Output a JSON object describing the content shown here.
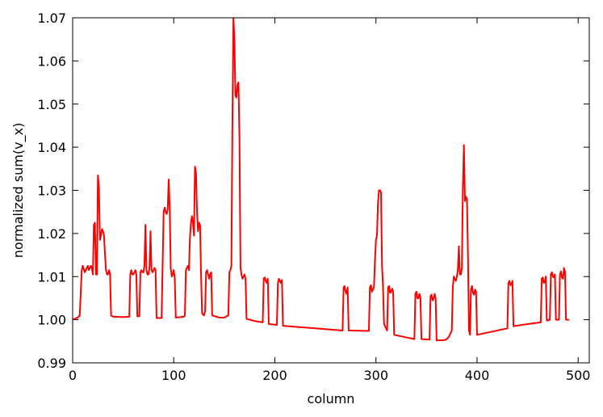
{
  "chart_data": {
    "type": "line",
    "title": "",
    "xlabel": "column",
    "ylabel": "normalized sum(v_x)",
    "xlim": [
      0,
      511
    ],
    "ylim": [
      0.99,
      1.07
    ],
    "grid": false,
    "line_color": "#ff0000",
    "x_ticks": [
      0,
      100,
      200,
      300,
      400,
      500
    ],
    "y_ticks": [
      0.99,
      1.0,
      1.01,
      1.02,
      1.03,
      1.04,
      1.05,
      1.06,
      1.07
    ],
    "x_tick_labels": [
      "0",
      "100",
      "200",
      "300",
      "400",
      "500"
    ],
    "y_tick_labels": [
      "0.99",
      "1.00",
      "1.01",
      "1.02",
      "1.03",
      "1.04",
      "1.05",
      "1.06",
      "1.07"
    ],
    "series": [
      {
        "points": [
          [
            0,
            1.0
          ],
          [
            5,
            1.0005
          ],
          [
            7,
            1.001
          ],
          [
            9,
            1.0115
          ],
          [
            10,
            1.0125
          ],
          [
            12,
            1.011
          ],
          [
            13,
            1.0115
          ],
          [
            15,
            1.0125
          ],
          [
            16,
            1.0115
          ],
          [
            17,
            1.012
          ],
          [
            18,
            1.0125
          ],
          [
            19,
            1.012
          ],
          [
            20,
            1.0105
          ],
          [
            21,
            1.022
          ],
          [
            22,
            1.0225
          ],
          [
            23,
            1.0105
          ],
          [
            24,
            1.0105
          ],
          [
            25,
            1.0335
          ],
          [
            26,
            1.0305
          ],
          [
            27,
            1.0185
          ],
          [
            28,
            1.0195
          ],
          [
            29,
            1.021
          ],
          [
            30,
            1.0205
          ],
          [
            31,
            1.0195
          ],
          [
            32,
            1.015
          ],
          [
            33,
            1.0115
          ],
          [
            34,
            1.0105
          ],
          [
            35,
            1.0105
          ],
          [
            36,
            1.0115
          ],
          [
            37,
            1.0105
          ],
          [
            38,
            1.001
          ],
          [
            40,
            1.0007
          ],
          [
            50,
            1.0006
          ],
          [
            56,
            1.0007
          ],
          [
            57,
            1.0105
          ],
          [
            58,
            1.0115
          ],
          [
            59,
            1.0105
          ],
          [
            60,
            1.0105
          ],
          [
            61,
            1.011
          ],
          [
            62,
            1.0115
          ],
          [
            63,
            1.0105
          ],
          [
            64,
            1.0008
          ],
          [
            66,
            1.0008
          ],
          [
            67,
            1.011
          ],
          [
            68,
            1.0115
          ],
          [
            69,
            1.011
          ],
          [
            70,
            1.011
          ],
          [
            71,
            1.0125
          ],
          [
            72,
            1.022
          ],
          [
            73,
            1.0115
          ],
          [
            74,
            1.0105
          ],
          [
            75,
            1.0105
          ],
          [
            76,
            1.012
          ],
          [
            77,
            1.0205
          ],
          [
            78,
            1.0115
          ],
          [
            79,
            1.011
          ],
          [
            80,
            1.0115
          ],
          [
            81,
            1.012
          ],
          [
            82,
            1.0115
          ],
          [
            83,
            1.0004
          ],
          [
            88,
            1.0004
          ],
          [
            89,
            1.013
          ],
          [
            90,
            1.025
          ],
          [
            91,
            1.026
          ],
          [
            92,
            1.025
          ],
          [
            93,
            1.0245
          ],
          [
            94,
            1.0255
          ],
          [
            95,
            1.0325
          ],
          [
            96,
            1.026
          ],
          [
            97,
            1.012
          ],
          [
            98,
            1.01
          ],
          [
            99,
            1.0105
          ],
          [
            100,
            1.0115
          ],
          [
            101,
            1.0095
          ],
          [
            102,
            1.0005
          ],
          [
            110,
            1.0007
          ],
          [
            111,
            1.001
          ],
          [
            112,
            1.0115
          ],
          [
            113,
            1.012
          ],
          [
            114,
            1.0125
          ],
          [
            115,
            1.0115
          ],
          [
            116,
            1.019
          ],
          [
            117,
            1.0225
          ],
          [
            118,
            1.024
          ],
          [
            119,
            1.0225
          ],
          [
            120,
            1.0195
          ],
          [
            121,
            1.0355
          ],
          [
            122,
            1.034
          ],
          [
            123,
            1.025
          ],
          [
            124,
            1.0205
          ],
          [
            125,
            1.0225
          ],
          [
            126,
            1.022
          ],
          [
            127,
            1.0105
          ],
          [
            128,
            1.0015
          ],
          [
            129,
            1.0012
          ],
          [
            130,
            1.001
          ],
          [
            131,
            1.002
          ],
          [
            132,
            1.011
          ],
          [
            133,
            1.0115
          ],
          [
            134,
            1.0105
          ],
          [
            135,
            1.0095
          ],
          [
            136,
            1.0105
          ],
          [
            137,
            1.011
          ],
          [
            138,
            1.001
          ],
          [
            145,
            1.0005
          ],
          [
            150,
            1.0005
          ],
          [
            154,
            1.001
          ],
          [
            155,
            1.011
          ],
          [
            156,
            1.0115
          ],
          [
            157,
            1.0125
          ],
          [
            158,
            1.045
          ],
          [
            159,
            1.07
          ],
          [
            160,
            1.065
          ],
          [
            161,
            1.052
          ],
          [
            162,
            1.0515
          ],
          [
            163,
            1.0545
          ],
          [
            164,
            1.055
          ],
          [
            165,
            1.042
          ],
          [
            166,
            1.012
          ],
          [
            167,
            1.0105
          ],
          [
            168,
            1.0095
          ],
          [
            169,
            1.01
          ],
          [
            170,
            1.0105
          ],
          [
            171,
            1.0095
          ],
          [
            172,
            1.0002
          ],
          [
            180,
            0.9997
          ],
          [
            188,
            0.9994
          ],
          [
            189,
            1.0095
          ],
          [
            190,
            1.0098
          ],
          [
            191,
            1.009
          ],
          [
            192,
            1.0085
          ],
          [
            193,
            1.0095
          ],
          [
            194,
            0.999
          ],
          [
            202,
            0.9988
          ],
          [
            203,
            1.0085
          ],
          [
            204,
            1.0095
          ],
          [
            205,
            1.009
          ],
          [
            206,
            1.0085
          ],
          [
            207,
            1.0092
          ],
          [
            208,
            0.9986
          ],
          [
            267,
            0.9975
          ],
          [
            268,
            1.0075
          ],
          [
            269,
            1.0078
          ],
          [
            270,
            1.0065
          ],
          [
            271,
            1.006
          ],
          [
            272,
            1.0075
          ],
          [
            273,
            0.9975
          ],
          [
            293,
            0.9974
          ],
          [
            294,
            1.0075
          ],
          [
            295,
            1.008
          ],
          [
            296,
            1.0065
          ],
          [
            297,
            1.007
          ],
          [
            298,
            1.0075
          ],
          [
            299,
            1.0135
          ],
          [
            300,
            1.0185
          ],
          [
            301,
            1.0195
          ],
          [
            302,
            1.027
          ],
          [
            303,
            1.03
          ],
          [
            304,
            1.03
          ],
          [
            305,
            1.0295
          ],
          [
            306,
            1.0125
          ],
          [
            307,
            1.0075
          ],
          [
            308,
            0.999
          ],
          [
            310,
            0.998
          ],
          [
            311,
            0.9975
          ],
          [
            312,
            1.0075
          ],
          [
            313,
            1.0078
          ],
          [
            314,
            1.0062
          ],
          [
            315,
            1.0065
          ],
          [
            316,
            1.0072
          ],
          [
            317,
            1.0065
          ],
          [
            318,
            0.9965
          ],
          [
            338,
            0.9955
          ],
          [
            339,
            1.006
          ],
          [
            340,
            1.0065
          ],
          [
            341,
            1.005
          ],
          [
            342,
            1.005
          ],
          [
            343,
            1.006
          ],
          [
            344,
            1.005
          ],
          [
            345,
            0.9955
          ],
          [
            353,
            0.9954
          ],
          [
            354,
            1.0055
          ],
          [
            355,
            1.0058
          ],
          [
            356,
            1.0045
          ],
          [
            357,
            1.0048
          ],
          [
            358,
            1.006
          ],
          [
            359,
            1.005
          ],
          [
            360,
            0.9952
          ],
          [
            368,
            0.9953
          ],
          [
            370,
            0.9955
          ],
          [
            372,
            0.996
          ],
          [
            375,
            0.9975
          ],
          [
            376,
            1.0075
          ],
          [
            377,
            1.01
          ],
          [
            378,
            1.0095
          ],
          [
            379,
            1.009
          ],
          [
            380,
            1.01
          ],
          [
            381,
            1.0115
          ],
          [
            382,
            1.017
          ],
          [
            383,
            1.0105
          ],
          [
            384,
            1.0105
          ],
          [
            385,
            1.012
          ],
          [
            386,
            1.031
          ],
          [
            387,
            1.0405
          ],
          [
            388,
            1.0275
          ],
          [
            389,
            1.0285
          ],
          [
            390,
            1.028
          ],
          [
            391,
            1.015
          ],
          [
            392,
            0.9975
          ],
          [
            393,
            0.9965
          ],
          [
            394,
            1.007
          ],
          [
            395,
            1.0078
          ],
          [
            396,
            1.0062
          ],
          [
            397,
            1.0058
          ],
          [
            398,
            1.007
          ],
          [
            399,
            1.0065
          ],
          [
            400,
            0.9965
          ],
          [
            430,
            0.998
          ],
          [
            431,
            1.0085
          ],
          [
            432,
            1.009
          ],
          [
            433,
            1.008
          ],
          [
            434,
            1.0083
          ],
          [
            435,
            1.009
          ],
          [
            436,
            0.9985
          ],
          [
            450,
            0.999
          ],
          [
            463,
            0.9994
          ],
          [
            464,
            1.0095
          ],
          [
            465,
            1.0098
          ],
          [
            466,
            1.0085
          ],
          [
            467,
            1.0088
          ],
          [
            468,
            1.01
          ],
          [
            469,
            0.9998
          ],
          [
            472,
            1.0
          ],
          [
            473,
            1.0105
          ],
          [
            474,
            1.011
          ],
          [
            475,
            1.01
          ],
          [
            476,
            1.0098
          ],
          [
            477,
            1.0105
          ],
          [
            478,
            1.0
          ],
          [
            481,
            1.0
          ],
          [
            482,
            1.0105
          ],
          [
            483,
            1.0112
          ],
          [
            484,
            1.0098
          ],
          [
            485,
            1.0095
          ],
          [
            486,
            1.012
          ],
          [
            487,
            1.011
          ],
          [
            488,
            1.0
          ],
          [
            491,
            1.0
          ]
        ]
      }
    ]
  }
}
